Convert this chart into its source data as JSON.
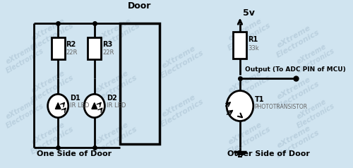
{
  "bg_color": "#d0e4f0",
  "line_color": "#000000",
  "line_width": 2.0,
  "watermark_color": "#b8cedd",
  "labels": {
    "door": "Door",
    "5v": "5v",
    "R1": "R1",
    "R1_val": "33k",
    "R2": "R2",
    "R2_val": "22R",
    "R3": "R3",
    "R3_val": "22R",
    "D1": "D1",
    "D1_sub": "IR LED",
    "D2": "D2",
    "D2_sub": "IR LED",
    "T1": "T1",
    "T1_sub": "PHOTOTRANSISTOR",
    "output": "Output (To ADC PIN of MCU)",
    "left_side": "One Side of Door",
    "right_side": "Other Side of Door"
  }
}
